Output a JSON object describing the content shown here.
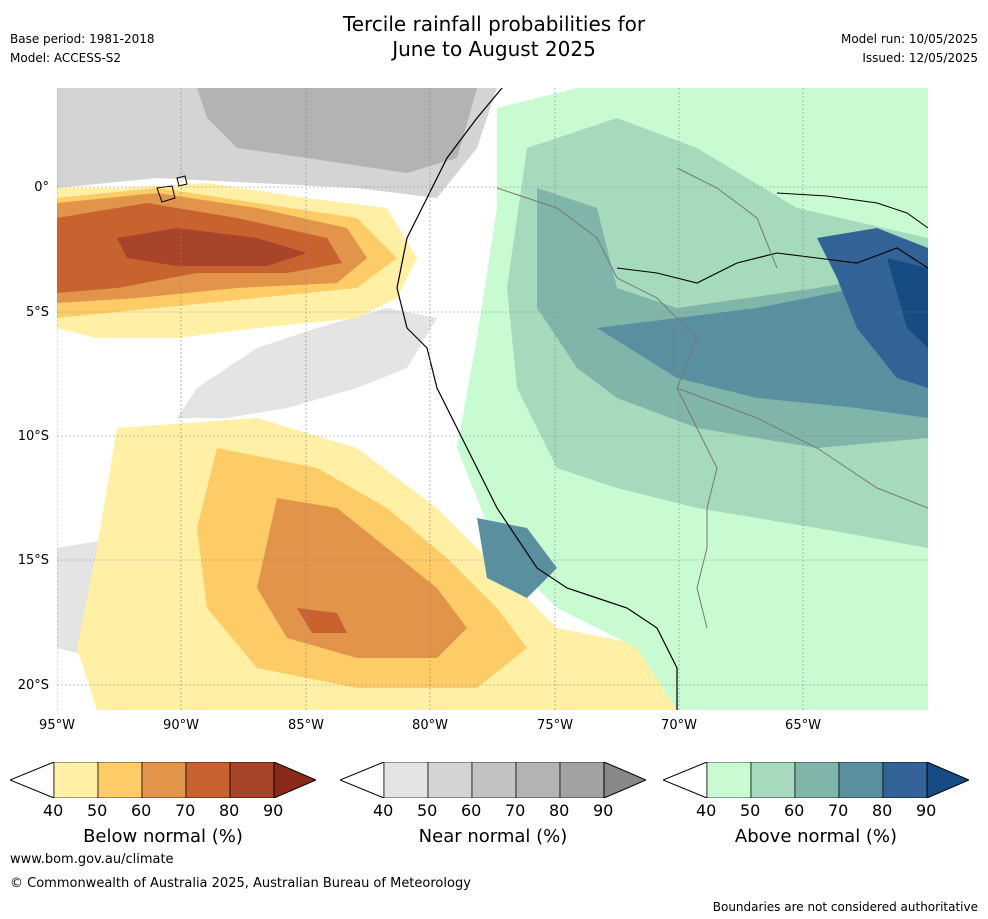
{
  "header": {
    "title_line1": "Tercile rainfall probabilities for",
    "title_line2": "June to August 2025",
    "base_period": "Base period: 1981-2018",
    "model": "Model: ACCESS-S2",
    "model_run": "Model run: 10/05/2025",
    "issued": "Issued: 12/05/2025"
  },
  "map": {
    "lat_labels": [
      "0°",
      "5°S",
      "10°S",
      "15°S",
      "20°S"
    ],
    "lon_labels": [
      "95°W",
      "90°W",
      "85°W",
      "80°W",
      "75°W",
      "70°W",
      "65°W"
    ]
  },
  "colorbars": [
    {
      "title": "Below normal (%)",
      "ticks": [
        "40",
        "50",
        "60",
        "70",
        "80",
        "90"
      ],
      "colors": [
        "#fff0a6",
        "#fdcc66",
        "#e2954a",
        "#c8632f",
        "#a8442a",
        "#8c2a1a"
      ]
    },
    {
      "title": "Near normal (%)",
      "ticks": [
        "40",
        "50",
        "60",
        "70",
        "80",
        "90"
      ],
      "colors": [
        "#e4e4e4",
        "#d4d4d4",
        "#c2c2c2",
        "#b3b3b3",
        "#a2a2a2",
        "#888888"
      ]
    },
    {
      "title": "Above normal (%)",
      "ticks": [
        "40",
        "50",
        "60",
        "70",
        "80",
        "90"
      ],
      "colors": [
        "#c8fbd2",
        "#a5dbbc",
        "#80b6aa",
        "#5a8fa0",
        "#336396",
        "#164b84"
      ]
    }
  ],
  "footer": {
    "url": "www.bom.gov.au/climate",
    "copyright": "© Commonwealth of Australia 2025, Australian Bureau of Meteorology",
    "disclaimer": "Boundaries are not considered authoritative"
  }
}
